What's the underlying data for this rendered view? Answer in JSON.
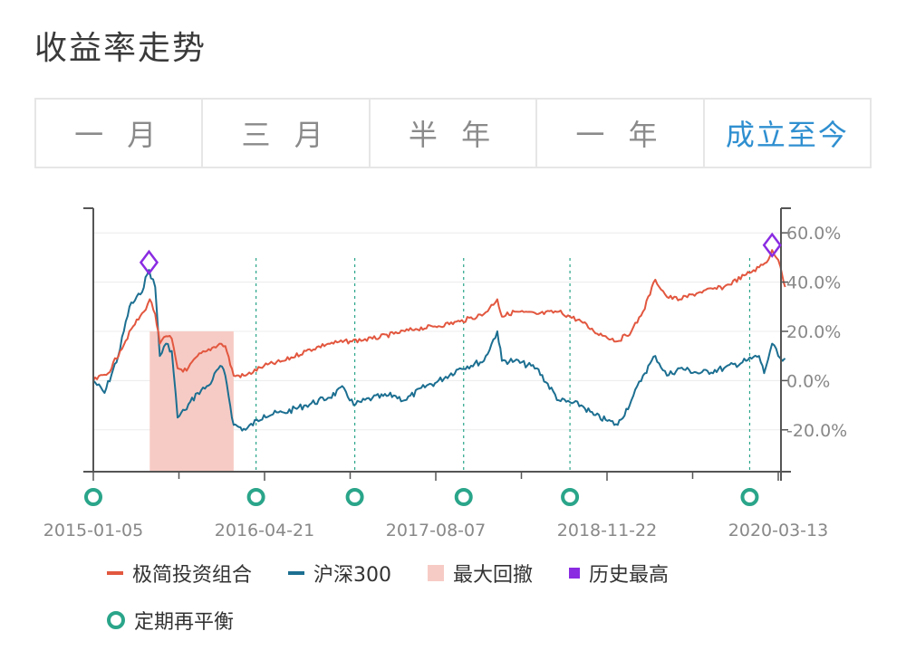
{
  "header": {
    "title": "收益率走势"
  },
  "tabs": [
    {
      "label": "一 月",
      "active": false
    },
    {
      "label": "三 月",
      "active": false
    },
    {
      "label": "半 年",
      "active": false
    },
    {
      "label": "一 年",
      "active": false
    },
    {
      "label": "成立至今",
      "active": true
    }
  ],
  "legend": {
    "portfolio": "极简投资组合",
    "benchmark": "沪深300",
    "drawdown": "最大回撤",
    "high": "历史最高",
    "rebalance": "定期再平衡"
  },
  "colors": {
    "portfolio": "#e2573f",
    "benchmark": "#1c6f91",
    "drawdown": "#f7cbc5",
    "high": "#8a2be2",
    "rebalance": "#2aa58a",
    "active_tab": "#2f8fd0"
  },
  "chart_data": {
    "type": "line",
    "x_tick_labels": [
      "2015-01-05",
      "2016-04-21",
      "2017-08-07",
      "2018-11-22",
      "2020-03-13"
    ],
    "x_range": [
      "2015-01-05",
      "2020-04-10"
    ],
    "y_axis": {
      "ticks": [
        "60.0%",
        "40.0%",
        "20.0%",
        "0.0%",
        "-20.0%"
      ],
      "ylim": [
        -37,
        70
      ],
      "position": "right",
      "unit": "%"
    },
    "grid": true,
    "series": [
      {
        "name": "极简投资组合",
        "points": [
          [
            "2015-01-05",
            0
          ],
          [
            "2015-02-15",
            3
          ],
          [
            "2015-03-20",
            12
          ],
          [
            "2015-04-25",
            22
          ],
          [
            "2015-05-25",
            28
          ],
          [
            "2015-06-10",
            33
          ],
          [
            "2015-06-25",
            27
          ],
          [
            "2015-07-08",
            15
          ],
          [
            "2015-07-25",
            18
          ],
          [
            "2015-08-10",
            17
          ],
          [
            "2015-08-26",
            5
          ],
          [
            "2015-09-20",
            4
          ],
          [
            "2015-10-20",
            10
          ],
          [
            "2015-11-15",
            12
          ],
          [
            "2015-12-20",
            15
          ],
          [
            "2016-01-05",
            14
          ],
          [
            "2016-01-28",
            2
          ],
          [
            "2016-03-01",
            2
          ],
          [
            "2016-04-21",
            6
          ],
          [
            "2016-06-15",
            8
          ],
          [
            "2016-08-15",
            12
          ],
          [
            "2016-10-15",
            15
          ],
          [
            "2016-12-15",
            16
          ],
          [
            "2017-02-15",
            17
          ],
          [
            "2017-04-15",
            19
          ],
          [
            "2017-06-15",
            21
          ],
          [
            "2017-08-07",
            22
          ],
          [
            "2017-10-15",
            24
          ],
          [
            "2017-12-20",
            27
          ],
          [
            "2018-01-26",
            33
          ],
          [
            "2018-02-08",
            26
          ],
          [
            "2018-03-15",
            28
          ],
          [
            "2018-05-15",
            27
          ],
          [
            "2018-07-15",
            28
          ],
          [
            "2018-09-15",
            24
          ],
          [
            "2018-10-20",
            20
          ],
          [
            "2018-11-22",
            18
          ],
          [
            "2018-12-25",
            16
          ],
          [
            "2019-02-01",
            20
          ],
          [
            "2019-03-05",
            28
          ],
          [
            "2019-04-08",
            41
          ],
          [
            "2019-05-10",
            34
          ],
          [
            "2019-06-15",
            33
          ],
          [
            "2019-08-10",
            36
          ],
          [
            "2019-10-15",
            38
          ],
          [
            "2019-12-15",
            43
          ],
          [
            "2020-01-20",
            46
          ],
          [
            "2020-02-10",
            48
          ],
          [
            "2020-02-25",
            53
          ],
          [
            "2020-03-13",
            49
          ],
          [
            "2020-03-25",
            42
          ],
          [
            "2020-04-01",
            38
          ]
        ]
      },
      {
        "name": "沪深300",
        "points": [
          [
            "2015-01-05",
            0
          ],
          [
            "2015-02-05",
            -5
          ],
          [
            "2015-03-15",
            10
          ],
          [
            "2015-04-15",
            30
          ],
          [
            "2015-05-15",
            35
          ],
          [
            "2015-06-08",
            45
          ],
          [
            "2015-06-25",
            38
          ],
          [
            "2015-07-08",
            10
          ],
          [
            "2015-07-25",
            15
          ],
          [
            "2015-08-10",
            12
          ],
          [
            "2015-08-26",
            -15
          ],
          [
            "2015-09-15",
            -12
          ],
          [
            "2015-10-20",
            -5
          ],
          [
            "2015-11-20",
            -2
          ],
          [
            "2015-12-22",
            6
          ],
          [
            "2016-01-05",
            2
          ],
          [
            "2016-01-28",
            -18
          ],
          [
            "2016-03-01",
            -20
          ],
          [
            "2016-04-21",
            -14
          ],
          [
            "2016-06-15",
            -13
          ],
          [
            "2016-08-15",
            -10
          ],
          [
            "2016-10-15",
            -7
          ],
          [
            "2016-11-28",
            -3
          ],
          [
            "2016-12-25",
            -10
          ],
          [
            "2017-02-15",
            -7
          ],
          [
            "2017-04-15",
            -6
          ],
          [
            "2017-05-15",
            -8
          ],
          [
            "2017-07-15",
            -2
          ],
          [
            "2017-08-07",
            -1
          ],
          [
            "2017-10-15",
            5
          ],
          [
            "2017-12-20",
            8
          ],
          [
            "2018-01-26",
            20
          ],
          [
            "2018-02-08",
            8
          ],
          [
            "2018-03-15",
            8
          ],
          [
            "2018-05-15",
            5
          ],
          [
            "2018-07-15",
            -8
          ],
          [
            "2018-09-15",
            -10
          ],
          [
            "2018-10-20",
            -14
          ],
          [
            "2018-11-22",
            -16
          ],
          [
            "2018-12-25",
            -18
          ],
          [
            "2019-02-01",
            -8
          ],
          [
            "2019-03-05",
            2
          ],
          [
            "2019-04-08",
            10
          ],
          [
            "2019-05-10",
            2
          ],
          [
            "2019-06-15",
            5
          ],
          [
            "2019-08-10",
            3
          ],
          [
            "2019-10-15",
            5
          ],
          [
            "2019-12-15",
            8
          ],
          [
            "2020-01-20",
            10
          ],
          [
            "2020-02-03",
            3
          ],
          [
            "2020-02-25",
            15
          ],
          [
            "2020-03-13",
            10
          ],
          [
            "2020-03-25",
            8
          ],
          [
            "2020-04-01",
            9
          ]
        ]
      }
    ],
    "drawdown_periods": [
      {
        "start": "2015-06-10",
        "end": "2016-01-28",
        "value": 20
      }
    ],
    "historical_highs": [
      {
        "date": "2015-06-08",
        "value": 48
      },
      {
        "date": "2020-02-25",
        "value": 55
      }
    ],
    "rebalance_dates": [
      "2015-01-05",
      "2016-03-30",
      "2016-12-28",
      "2017-10-25",
      "2018-08-15",
      "2019-12-25"
    ]
  }
}
